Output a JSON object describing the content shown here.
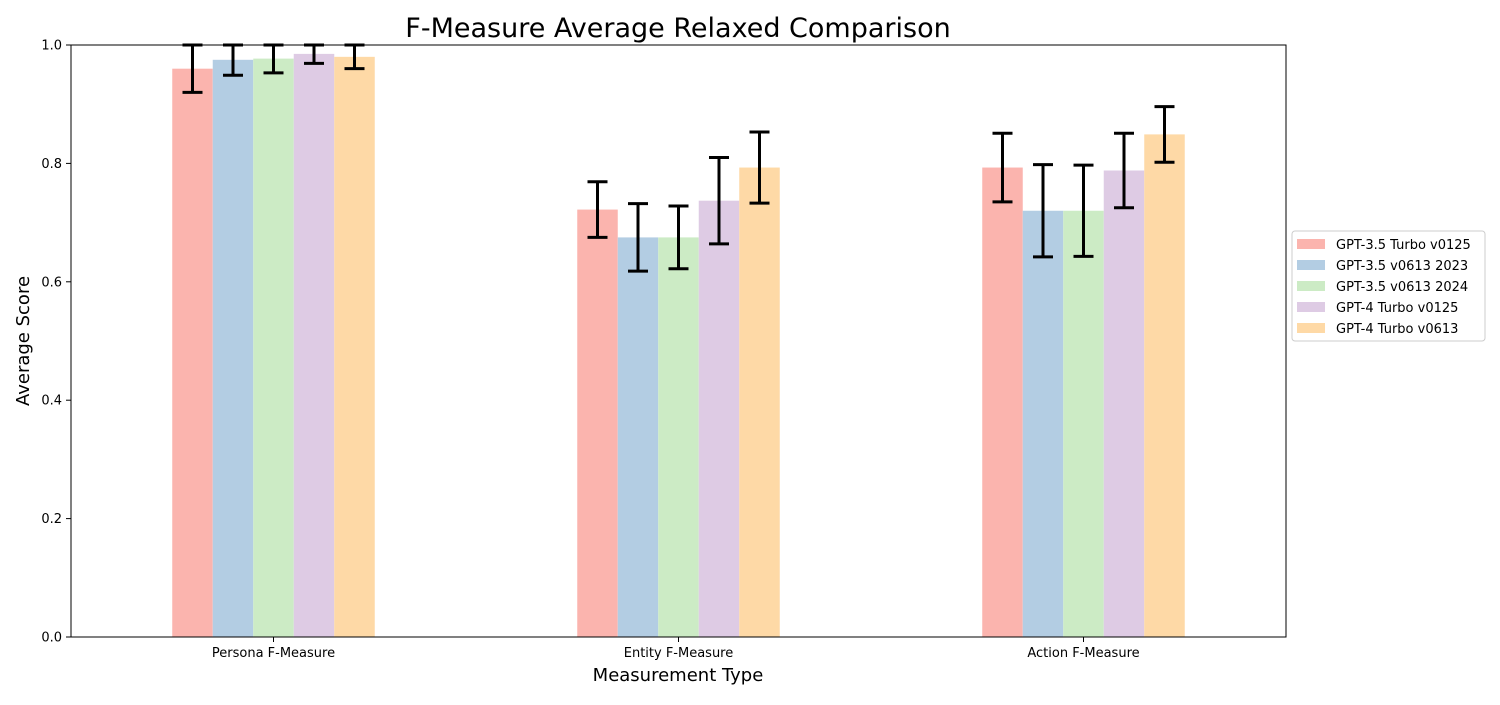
{
  "chart_data": {
    "type": "bar",
    "title": "F-Measure Average Relaxed Comparison",
    "xlabel": "Measurement Type",
    "ylabel": "Average Score",
    "ylim": [
      0,
      1.0
    ],
    "yticks": [
      0.0,
      0.2,
      0.4,
      0.6,
      0.8,
      1.0
    ],
    "ytick_labels": [
      "0.0",
      "0.2",
      "0.4",
      "0.6",
      "0.8",
      "1.0"
    ],
    "categories": [
      "Persona F-Measure",
      "Entity F-Measure",
      "Action F-Measure"
    ],
    "legend_position": "right",
    "error_bars": true,
    "series": [
      {
        "name": "GPT-3.5 Turbo v0125",
        "color": "#fbb4ae",
        "values": [
          0.96,
          0.722,
          0.793
        ],
        "errors": [
          0.04,
          0.047,
          0.058
        ]
      },
      {
        "name": "GPT-3.5 v0613 2023",
        "color": "#b3cde3",
        "values": [
          0.975,
          0.675,
          0.72
        ],
        "errors": [
          0.026,
          0.057,
          0.078
        ]
      },
      {
        "name": "GPT-3.5 v0613 2024",
        "color": "#ccebc5",
        "values": [
          0.977,
          0.675,
          0.72
        ],
        "errors": [
          0.024,
          0.053,
          0.077
        ]
      },
      {
        "name": "GPT-4 Turbo v0125",
        "color": "#decbe4",
        "values": [
          0.985,
          0.737,
          0.788
        ],
        "errors": [
          0.016,
          0.073,
          0.063
        ]
      },
      {
        "name": "GPT-4 Turbo v0613",
        "color": "#fed9a6",
        "values": [
          0.98,
          0.793,
          0.849
        ],
        "errors": [
          0.02,
          0.06,
          0.047
        ]
      }
    ]
  }
}
